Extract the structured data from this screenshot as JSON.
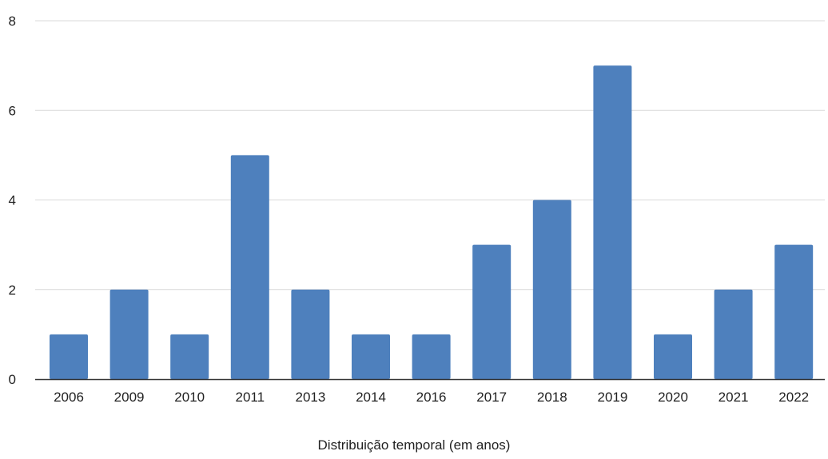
{
  "chart_data": {
    "type": "bar",
    "title": "",
    "xlabel": "Distribuição temporal (em anos)",
    "ylabel": "",
    "categories": [
      "2006",
      "2009",
      "2010",
      "2011",
      "2013",
      "2014",
      "2016",
      "2017",
      "2018",
      "2019",
      "2020",
      "2021",
      "2022"
    ],
    "values": [
      1,
      2,
      1,
      5,
      2,
      1,
      1,
      3,
      4,
      7,
      1,
      2,
      3
    ],
    "ylim": [
      0,
      8
    ],
    "yticks": [
      0,
      2,
      4,
      6,
      8
    ],
    "grid": true,
    "legend": "none",
    "bar_color": "#4e80bd",
    "grid_color": "#d9d9d9",
    "axis_color": "#333333"
  }
}
